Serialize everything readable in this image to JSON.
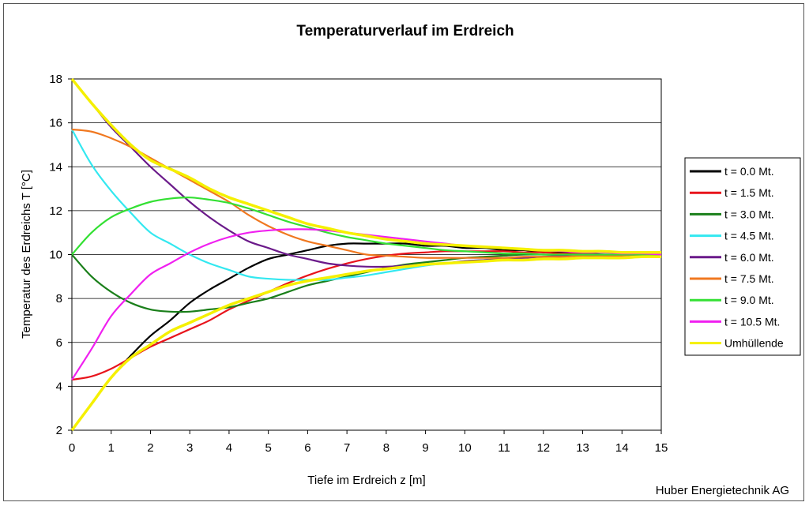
{
  "chart_data": {
    "type": "line",
    "title": "Temperaturverlauf im Erdreich",
    "xlabel": "Tiefe im Erdreich z [m]",
    "ylabel": "Temperatur des Erdreichs T [°C]",
    "xlim": [
      0,
      15
    ],
    "ylim": [
      2,
      18
    ],
    "xticks": [
      0,
      1,
      2,
      3,
      4,
      5,
      6,
      7,
      8,
      9,
      10,
      11,
      12,
      13,
      14,
      15
    ],
    "yticks": [
      2,
      4,
      6,
      8,
      10,
      12,
      14,
      16,
      18
    ],
    "grid": "horizontal",
    "legend_position": "right",
    "x": [
      0,
      0.5,
      1,
      1.5,
      2,
      2.5,
      3,
      3.5,
      4,
      4.5,
      5,
      5.5,
      6,
      6.5,
      7,
      7.5,
      8,
      8.5,
      9,
      9.5,
      10,
      10.5,
      11,
      11.5,
      12,
      12.5,
      13,
      13.5,
      14,
      14.5,
      15
    ],
    "series": [
      {
        "name": "t = 0.0 Mt.",
        "color": "#000000",
        "values": [
          2.0,
          3.2,
          4.4,
          5.4,
          6.3,
          7.0,
          7.8,
          8.4,
          8.9,
          9.4,
          9.8,
          10.0,
          10.2,
          10.4,
          10.5,
          10.5,
          10.5,
          10.5,
          10.4,
          10.4,
          10.3,
          10.3,
          10.2,
          10.2,
          10.1,
          10.1,
          10.1,
          10.0,
          10.0,
          10.0,
          10.0
        ]
      },
      {
        "name": "t = 1.5 Mt.",
        "color": "#e8141c",
        "values": [
          4.3,
          4.45,
          4.8,
          5.3,
          5.8,
          6.2,
          6.6,
          7.0,
          7.5,
          7.9,
          8.3,
          8.7,
          9.05,
          9.35,
          9.6,
          9.8,
          9.95,
          10.05,
          10.1,
          10.15,
          10.15,
          10.15,
          10.15,
          10.1,
          10.1,
          10.05,
          10.05,
          10.0,
          10.0,
          10.0,
          10.0
        ]
      },
      {
        "name": "t = 3.0 Mt.",
        "color": "#1a7f1a",
        "values": [
          10.0,
          9.0,
          8.3,
          7.8,
          7.5,
          7.4,
          7.4,
          7.5,
          7.6,
          7.8,
          8.0,
          8.3,
          8.6,
          8.8,
          9.0,
          9.2,
          9.4,
          9.55,
          9.65,
          9.75,
          9.85,
          9.9,
          9.95,
          10.0,
          10.0,
          10.0,
          10.0,
          10.0,
          10.0,
          10.0,
          10.0
        ]
      },
      {
        "name": "t = 4.5 Mt.",
        "color": "#33e8f0",
        "values": [
          15.7,
          14.1,
          12.9,
          11.9,
          11.0,
          10.5,
          10.0,
          9.6,
          9.3,
          9.0,
          8.9,
          8.85,
          8.85,
          8.85,
          8.95,
          9.05,
          9.2,
          9.35,
          9.5,
          9.6,
          9.7,
          9.75,
          9.8,
          9.85,
          9.9,
          9.9,
          9.95,
          9.95,
          10.0,
          10.0,
          10.0
        ]
      },
      {
        "name": "t = 6.0 Mt.",
        "color": "#6b1a8a",
        "values": [
          18.0,
          16.9,
          15.8,
          14.9,
          14.0,
          13.2,
          12.4,
          11.7,
          11.1,
          10.6,
          10.3,
          10.0,
          9.8,
          9.6,
          9.5,
          9.45,
          9.45,
          9.5,
          9.55,
          9.6,
          9.7,
          9.75,
          9.8,
          9.85,
          9.9,
          9.95,
          9.95,
          9.95,
          10.0,
          10.0,
          10.0
        ]
      },
      {
        "name": "t = 7.5 Mt.",
        "color": "#f07820",
        "values": [
          15.7,
          15.6,
          15.3,
          14.9,
          14.4,
          13.9,
          13.4,
          12.9,
          12.4,
          11.8,
          11.3,
          10.9,
          10.6,
          10.4,
          10.2,
          10.0,
          9.95,
          9.9,
          9.85,
          9.85,
          9.85,
          9.85,
          9.85,
          9.9,
          9.9,
          9.9,
          9.95,
          9.95,
          9.95,
          10.0,
          10.0
        ]
      },
      {
        "name": "t = 9.0 Mt.",
        "color": "#33e033",
        "values": [
          10.0,
          11.0,
          11.7,
          12.1,
          12.4,
          12.55,
          12.6,
          12.5,
          12.35,
          12.1,
          11.8,
          11.5,
          11.25,
          11.0,
          10.8,
          10.65,
          10.5,
          10.4,
          10.3,
          10.2,
          10.15,
          10.1,
          10.05,
          10.05,
          10.0,
          10.0,
          10.0,
          10.0,
          10.0,
          10.0,
          10.0
        ]
      },
      {
        "name": "t = 10.5 Mt.",
        "color": "#f020f0",
        "values": [
          4.3,
          5.7,
          7.2,
          8.2,
          9.1,
          9.6,
          10.1,
          10.5,
          10.8,
          11.0,
          11.1,
          11.15,
          11.15,
          11.1,
          11.0,
          10.9,
          10.8,
          10.7,
          10.6,
          10.5,
          10.4,
          10.35,
          10.3,
          10.25,
          10.2,
          10.15,
          10.1,
          10.1,
          10.05,
          10.05,
          10.0
        ]
      },
      {
        "name": "Umhüllende",
        "color": "#f5f000",
        "values_upper": [
          18.0,
          16.9,
          15.9,
          15.0,
          14.3,
          13.9,
          13.5,
          13.0,
          12.6,
          12.3,
          12.0,
          11.7,
          11.4,
          11.2,
          11.0,
          10.85,
          10.7,
          10.6,
          10.5,
          10.45,
          10.4,
          10.35,
          10.3,
          10.25,
          10.2,
          10.2,
          10.15,
          10.15,
          10.1,
          10.1,
          10.1
        ],
        "values_lower": [
          2.0,
          3.2,
          4.4,
          5.3,
          5.9,
          6.5,
          6.9,
          7.3,
          7.7,
          8.0,
          8.3,
          8.6,
          8.8,
          8.95,
          9.1,
          9.25,
          9.35,
          9.45,
          9.55,
          9.6,
          9.65,
          9.7,
          9.75,
          9.75,
          9.8,
          9.8,
          9.85,
          9.85,
          9.85,
          9.9,
          9.9
        ]
      }
    ]
  },
  "credit": "Huber Energietechnik AG"
}
